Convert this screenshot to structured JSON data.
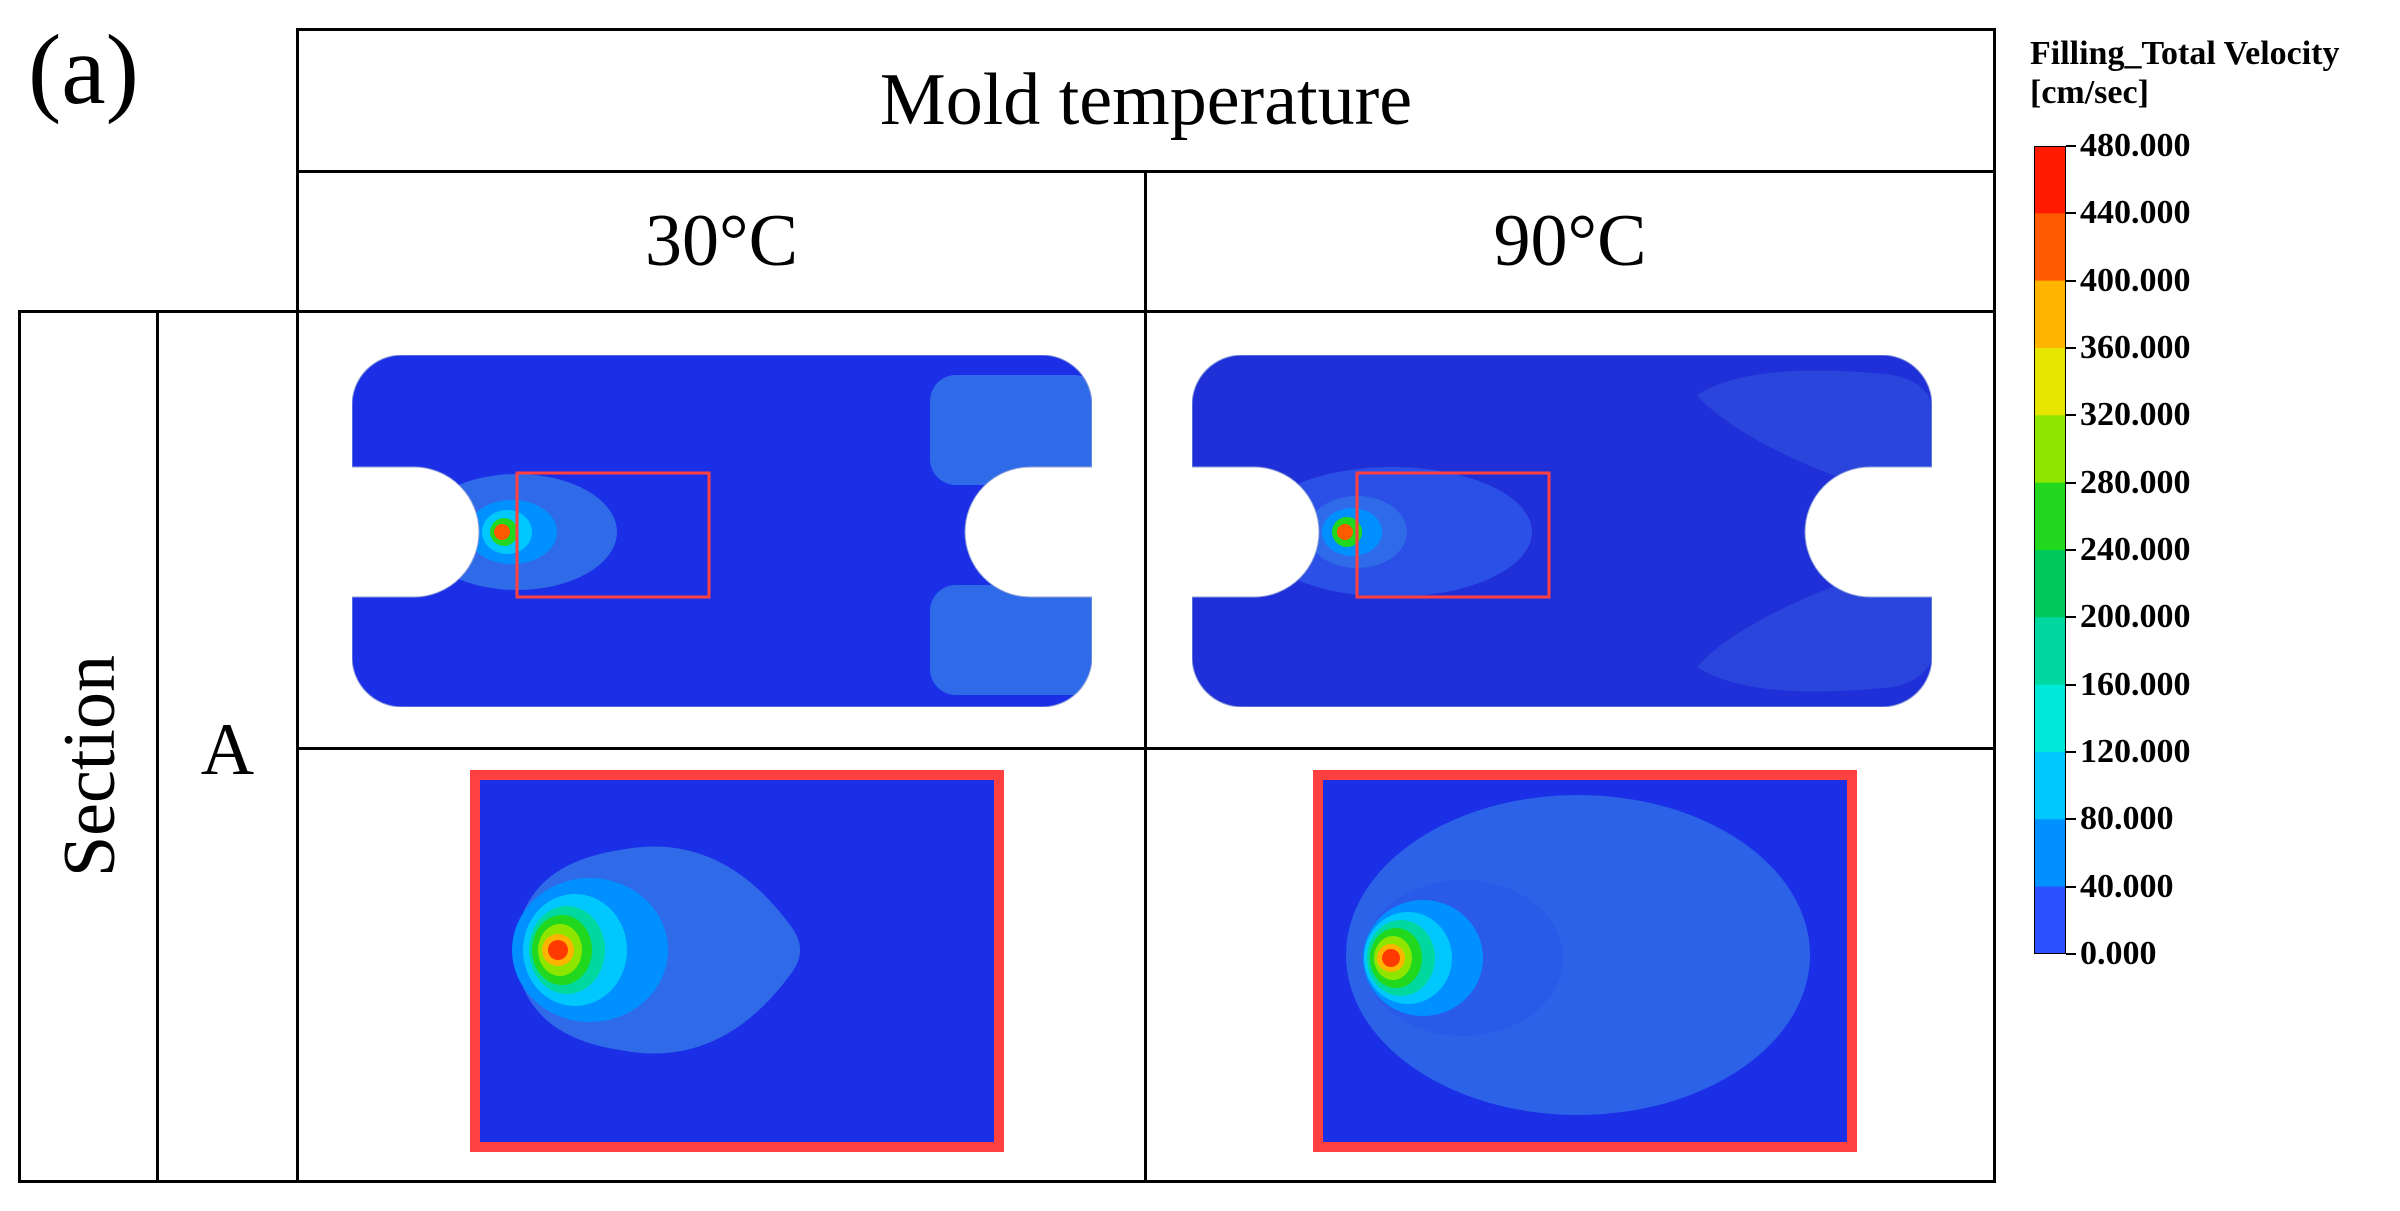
{
  "panel_label": "(a)",
  "header": {
    "title": "Mold temperature",
    "columns": [
      "30°C",
      "90°C"
    ]
  },
  "rows": {
    "group_label": "Section",
    "row_label": "A"
  },
  "colorbar": {
    "title_line1": "Filling_Total Velocity",
    "title_line2": "[cm/sec]",
    "ticks": [
      "480.000",
      "440.000",
      "400.000",
      "360.000",
      "320.000",
      "280.000",
      "240.000",
      "200.000",
      "160.000",
      "120.000",
      "80.000",
      "40.000",
      "0.000"
    ],
    "colors": [
      "#ff1a00",
      "#ff5a00",
      "#ffb400",
      "#e6e600",
      "#8ee600",
      "#22d81e",
      "#00c85a",
      "#00d8a0",
      "#00e8d8",
      "#00c8ff",
      "#0090ff",
      "#2a50ff",
      "#0000ff"
    ]
  },
  "colors": {
    "background_field": "#1a2fe6",
    "field_dark": "#1f30d8",
    "light_zone": "#2f6be8",
    "highlight_frame": "#ff4040"
  }
}
